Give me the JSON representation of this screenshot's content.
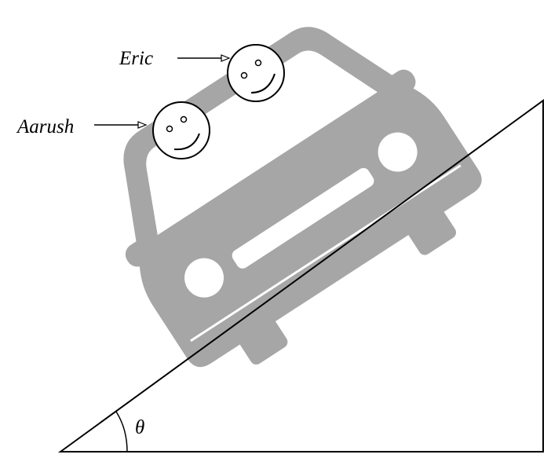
{
  "labels": {
    "eric": "Eric",
    "aarush": "Aarush",
    "angle": "θ"
  },
  "colors": {
    "car": "#a6a6a6",
    "window": "#ffffff",
    "line": "#000000",
    "background": "#ffffff"
  }
}
